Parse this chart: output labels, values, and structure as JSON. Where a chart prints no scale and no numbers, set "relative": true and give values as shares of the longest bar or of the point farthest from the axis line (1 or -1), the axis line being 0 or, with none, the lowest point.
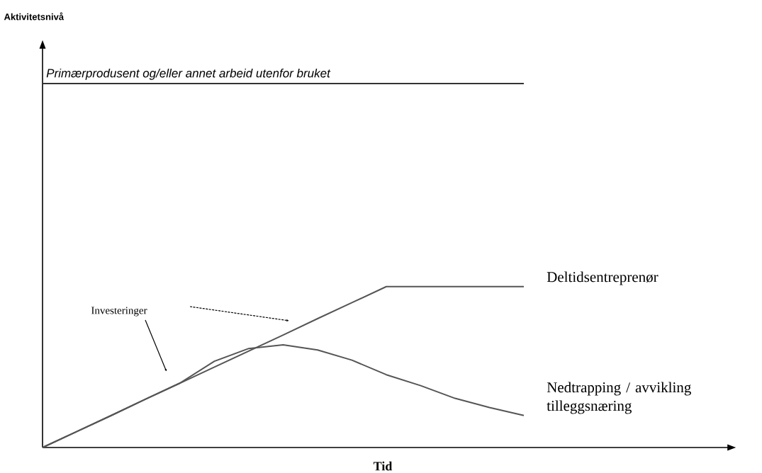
{
  "chart_data": {
    "type": "line",
    "relative": true,
    "xlabel": "Tid",
    "annotations": [
      "Aktivitetsnivå",
      "Investeringer"
    ],
    "categories": [
      null,
      null,
      null,
      null,
      null,
      null,
      null,
      null,
      null,
      null,
      null,
      null,
      null,
      null,
      null
    ],
    "series": [
      {
        "name": "Primærprodusent og/eller annet arbeid utenfor bruket",
        "color": "#333333",
        "values": [
          1,
          1,
          1,
          1,
          1,
          1,
          1,
          1,
          1,
          1,
          1,
          1,
          1,
          1,
          1
        ]
      },
      {
        "name": "Deltidsentreprenør",
        "color": "#555555",
        "values": [
          0,
          0.044,
          0.088,
          0.133,
          0.177,
          0.221,
          0.265,
          0.309,
          0.354,
          0.398,
          0.442,
          0.442,
          0.442,
          0.442,
          0.442
        ]
      },
      {
        "name": "Nedtrapping / avvikling tilleggsnæring",
        "color": "#555555",
        "values": [
          0,
          0.044,
          0.088,
          0.133,
          0.177,
          0.237,
          0.272,
          0.282,
          0.268,
          0.24,
          0.2,
          0.17,
          0.135,
          0.11,
          0.088
        ]
      }
    ]
  }
}
